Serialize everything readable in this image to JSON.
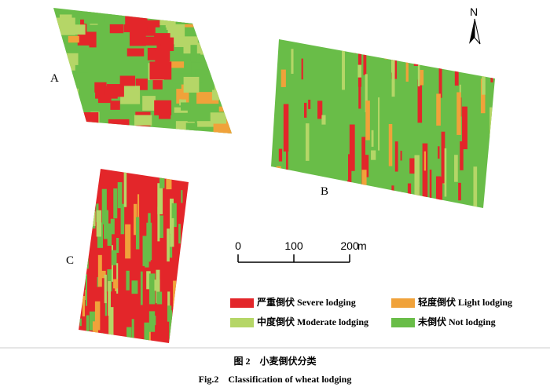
{
  "fields": [
    {
      "label": "A"
    },
    {
      "label": "B"
    },
    {
      "label": "C"
    }
  ],
  "north": "N",
  "scale": {
    "ticks": [
      0,
      100,
      200
    ],
    "unit": "m"
  },
  "legend": [
    {
      "name": "严重倒伏 Severe lodging",
      "color": "#e3262a"
    },
    {
      "name": "轻度倒伏 Light lodging",
      "color": "#f0a23a"
    },
    {
      "name": "中度倒伏 Moderate lodging",
      "color": "#b5d667"
    },
    {
      "name": "未倒伏 Not lodging",
      "color": "#69bd48"
    }
  ],
  "caption": {
    "cn": "图 2　小麦倒伏分类",
    "en": "Fig.2　Classification of wheat lodging"
  }
}
